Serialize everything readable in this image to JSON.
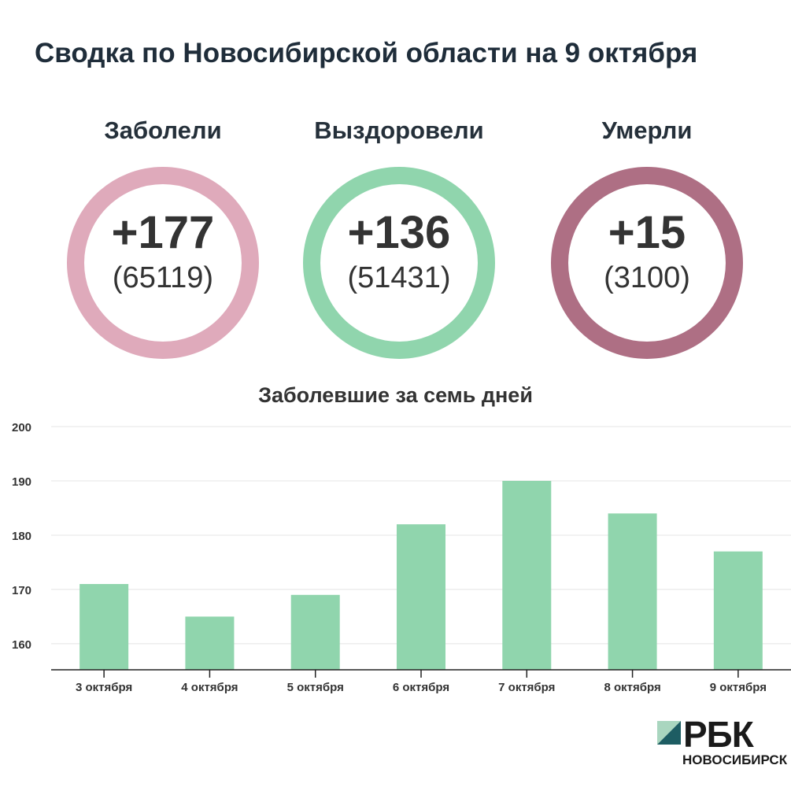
{
  "title": "Сводка по Новосибирской области на 9 октября",
  "stats": [
    {
      "label": "Заболели",
      "delta": "+177",
      "total": "(65119)",
      "color": "#dfaabb"
    },
    {
      "label": "Выздоровели",
      "delta": "+136",
      "total": "(51431)",
      "color": "#90d5ad"
    },
    {
      "label": "Умерли",
      "delta": "+15",
      "total": "(3100)",
      "color": "#ae6f84"
    }
  ],
  "chart_data": {
    "type": "bar",
    "title": "Заболевшие за семь дней",
    "categories": [
      "3 октября",
      "4 октября",
      "5 октября",
      "6 октября",
      "7 октября",
      "8 октября",
      "9 октября"
    ],
    "values": [
      171,
      165,
      169,
      182,
      190,
      184,
      177
    ],
    "yticks": [
      160,
      170,
      180,
      190,
      200
    ],
    "ylim": [
      155.2,
      200
    ],
    "xlabel": "",
    "ylabel": "",
    "grid": true,
    "bar_color": "#90d5ad"
  },
  "logo": {
    "word": "РБК",
    "city": "НОВОСИБИРСК"
  }
}
